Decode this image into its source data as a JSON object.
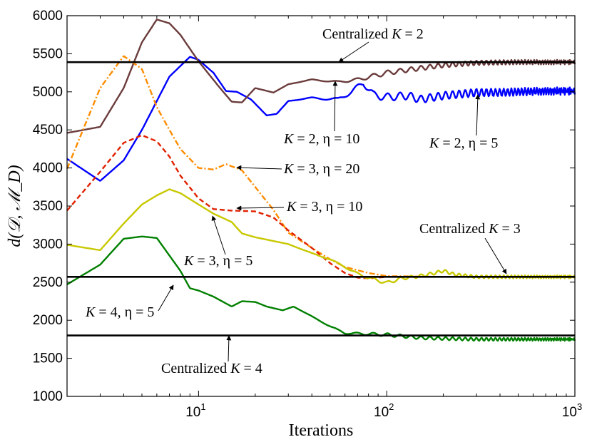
{
  "chart_data": {
    "type": "line",
    "xscale": "log",
    "xlim": [
      2,
      1000
    ],
    "ylim": [
      1000,
      6000
    ],
    "xlabel": "Iterations",
    "ylabel": "d(𝒟, ℳ_D)",
    "y_ticks": [
      "1000",
      "1500",
      "2000",
      "2500",
      "3000",
      "3500",
      "4000",
      "4500",
      "5000",
      "5500",
      "6000"
    ],
    "x_ticks": [
      {
        "value": 10,
        "base": "10",
        "exp": "1"
      },
      {
        "value": 100,
        "base": "10",
        "exp": "2"
      },
      {
        "value": 1000,
        "base": "10",
        "exp": "3"
      }
    ],
    "reference_lines": [
      {
        "name": "Centralized K = 2",
        "value": 5390,
        "color": "#000000"
      },
      {
        "name": "Centralized K = 3",
        "value": 2570,
        "color": "#000000"
      },
      {
        "name": "Centralized K = 4",
        "value": 1800,
        "color": "#000000"
      }
    ],
    "series": [
      {
        "name": "K = 2, η = 5",
        "color": "#0000ff",
        "dash": "solid",
        "osc": 50,
        "points": [
          [
            2,
            4120
          ],
          [
            3,
            3830
          ],
          [
            4,
            4100
          ],
          [
            5,
            4500
          ],
          [
            7,
            5200
          ],
          [
            9,
            5460
          ],
          [
            10,
            5420
          ],
          [
            12,
            5250
          ],
          [
            14,
            5010
          ],
          [
            16,
            5000
          ],
          [
            19,
            4900
          ],
          [
            23,
            4690
          ],
          [
            26,
            4710
          ],
          [
            30,
            4880
          ],
          [
            40,
            4920
          ],
          [
            55,
            4900
          ],
          [
            65,
            5000
          ],
          [
            75,
            5120
          ],
          [
            85,
            4960
          ],
          [
            100,
            4930
          ],
          [
            130,
            4950
          ],
          [
            150,
            4900
          ],
          [
            200,
            4950
          ],
          [
            300,
            4990
          ],
          [
            400,
            4990
          ],
          [
            500,
            5000
          ],
          [
            700,
            5010
          ],
          [
            1000,
            5010
          ]
        ]
      },
      {
        "name": "K = 2, η = 10",
        "color": "#6b3c3c",
        "dash": "solid",
        "osc": 30,
        "points": [
          [
            2,
            4460
          ],
          [
            3,
            4540
          ],
          [
            4,
            5050
          ],
          [
            5,
            5650
          ],
          [
            6,
            5950
          ],
          [
            7,
            5900
          ],
          [
            8,
            5750
          ],
          [
            10,
            5400
          ],
          [
            13,
            5050
          ],
          [
            15,
            4870
          ],
          [
            17,
            4860
          ],
          [
            20,
            5050
          ],
          [
            25,
            4990
          ],
          [
            30,
            5100
          ],
          [
            40,
            5160
          ],
          [
            55,
            5130
          ],
          [
            70,
            5160
          ],
          [
            100,
            5250
          ],
          [
            150,
            5310
          ],
          [
            200,
            5350
          ],
          [
            300,
            5380
          ],
          [
            500,
            5390
          ],
          [
            1000,
            5390
          ]
        ]
      },
      {
        "name": "K = 3, η = 20",
        "color": "#ff8c00",
        "dash": "dashdot",
        "osc": 0,
        "points": [
          [
            2,
            3990
          ],
          [
            3,
            5050
          ],
          [
            4,
            5470
          ],
          [
            5,
            5300
          ],
          [
            6,
            4800
          ],
          [
            7,
            4500
          ],
          [
            8,
            4250
          ],
          [
            10,
            4000
          ],
          [
            12,
            3980
          ],
          [
            14,
            4050
          ],
          [
            17,
            3970
          ],
          [
            20,
            3750
          ],
          [
            25,
            3450
          ],
          [
            30,
            3150
          ],
          [
            40,
            2950
          ],
          [
            50,
            2800
          ],
          [
            60,
            2700
          ],
          [
            80,
            2620
          ],
          [
            100,
            2580
          ],
          [
            200,
            2570
          ],
          [
            1000,
            2570
          ]
        ]
      },
      {
        "name": "K = 3, η = 10",
        "color": "#e02000",
        "dash": "dashed",
        "osc": 0,
        "points": [
          [
            2,
            3440
          ],
          [
            3,
            3950
          ],
          [
            4,
            4330
          ],
          [
            5,
            4430
          ],
          [
            6,
            4350
          ],
          [
            7,
            4150
          ],
          [
            8,
            3900
          ],
          [
            10,
            3600
          ],
          [
            12,
            3460
          ],
          [
            15,
            3440
          ],
          [
            20,
            3430
          ],
          [
            25,
            3350
          ],
          [
            30,
            3180
          ],
          [
            40,
            2950
          ],
          [
            50,
            2750
          ],
          [
            60,
            2620
          ],
          [
            70,
            2560
          ],
          [
            80,
            2550
          ],
          [
            100,
            2570
          ],
          [
            1000,
            2570
          ]
        ]
      },
      {
        "name": "K = 3, η = 5",
        "color": "#c8c800",
        "dash": "solid",
        "osc": 20,
        "points": [
          [
            2,
            2990
          ],
          [
            3,
            2920
          ],
          [
            4,
            3270
          ],
          [
            5,
            3520
          ],
          [
            6,
            3640
          ],
          [
            7,
            3720
          ],
          [
            8,
            3670
          ],
          [
            10,
            3520
          ],
          [
            12,
            3400
          ],
          [
            15,
            3290
          ],
          [
            17,
            3140
          ],
          [
            20,
            3090
          ],
          [
            30,
            3000
          ],
          [
            40,
            2880
          ],
          [
            50,
            2800
          ],
          [
            60,
            2700
          ],
          [
            70,
            2610
          ],
          [
            80,
            2560
          ],
          [
            100,
            2490
          ],
          [
            120,
            2550
          ],
          [
            150,
            2580
          ],
          [
            180,
            2620
          ],
          [
            200,
            2650
          ],
          [
            230,
            2600
          ],
          [
            300,
            2570
          ],
          [
            1000,
            2570
          ]
        ]
      },
      {
        "name": "K = 4, η = 5",
        "color": "#008000",
        "dash": "solid",
        "osc": 20,
        "points": [
          [
            2,
            2470
          ],
          [
            3,
            2730
          ],
          [
            4,
            3070
          ],
          [
            5,
            3100
          ],
          [
            6,
            3080
          ],
          [
            7,
            2850
          ],
          [
            8,
            2650
          ],
          [
            9,
            2420
          ],
          [
            10,
            2390
          ],
          [
            12,
            2310
          ],
          [
            15,
            2180
          ],
          [
            17,
            2250
          ],
          [
            20,
            2240
          ],
          [
            23,
            2180
          ],
          [
            28,
            2130
          ],
          [
            32,
            2180
          ],
          [
            40,
            2050
          ],
          [
            50,
            1920
          ],
          [
            60,
            1830
          ],
          [
            80,
            1820
          ],
          [
            100,
            1810
          ],
          [
            150,
            1770
          ],
          [
            200,
            1760
          ],
          [
            300,
            1750
          ],
          [
            1000,
            1750
          ]
        ]
      }
    ],
    "annotations": [
      {
        "id": "central-k2",
        "pre": "Centralized ",
        "var": "K",
        "post": " = 2"
      },
      {
        "id": "k2-eta10",
        "pre": "",
        "var": "K",
        "post": " = 2, η = 10"
      },
      {
        "id": "k2-eta5",
        "pre": "",
        "var": "K",
        "post": " = 2, η = 5"
      },
      {
        "id": "k3-eta20",
        "pre": "",
        "var": "K",
        "post": " = 3, η = 20"
      },
      {
        "id": "k3-eta10",
        "pre": "",
        "var": "K",
        "post": " = 3, η = 10"
      },
      {
        "id": "k3-eta5",
        "pre": "",
        "var": "K",
        "post": " = 3, η = 5"
      },
      {
        "id": "central-k3",
        "pre": "Centralized ",
        "var": "K",
        "post": " = 3"
      },
      {
        "id": "k4-eta5",
        "pre": "",
        "var": "K",
        "post": " = 4, η = 5"
      },
      {
        "id": "central-k4",
        "pre": "Centralized ",
        "var": "K",
        "post": " = 4"
      }
    ]
  }
}
